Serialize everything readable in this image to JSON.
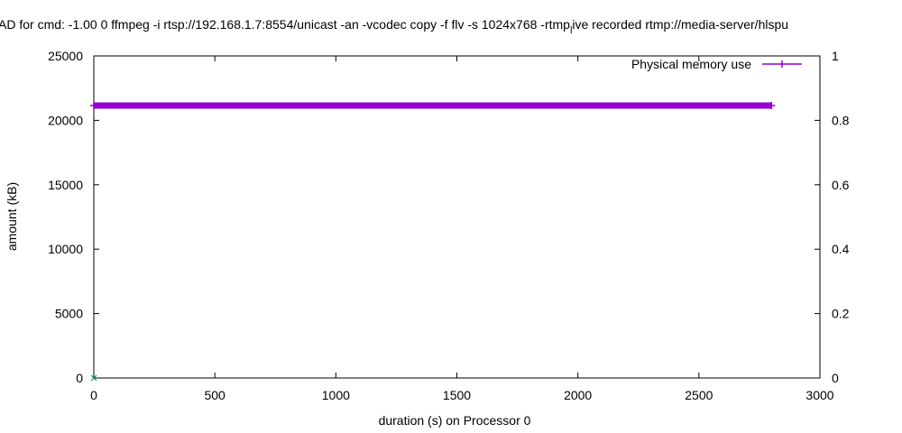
{
  "chart_data": {
    "type": "line",
    "title": "AD for cmd: -1.00 0 ffmpeg -i rtsp://192.168.1.7:8554/unicast -an -vcodec copy -f flv -s 1024x768 -rtmp",
    "title_subscript": "l",
    "title_tail": "ive recorded rtmp://media-server/hlspu",
    "xlabel": "duration (s) on Processor 0",
    "ylabel": "amount (kB)",
    "xlim": [
      0,
      3000
    ],
    "ylim": [
      0,
      25000
    ],
    "y2lim": [
      0,
      1
    ],
    "x_ticks": [
      0,
      500,
      1000,
      1500,
      2000,
      2500,
      3000
    ],
    "y_ticks": [
      0,
      5000,
      10000,
      15000,
      20000,
      25000
    ],
    "y2_ticks": [
      0,
      0.2,
      0.4,
      0.6,
      0.8,
      1
    ],
    "grid": false,
    "legend_position": "top-right",
    "series": [
      {
        "name": "Physical memory use",
        "color": "#9400d3",
        "marker": "plus",
        "x": [
          0,
          2800
        ],
        "y": [
          21150,
          21150
        ]
      },
      {
        "color": "#009e73",
        "marker": "cross",
        "x": [
          0
        ],
        "y": [
          0
        ]
      }
    ]
  }
}
